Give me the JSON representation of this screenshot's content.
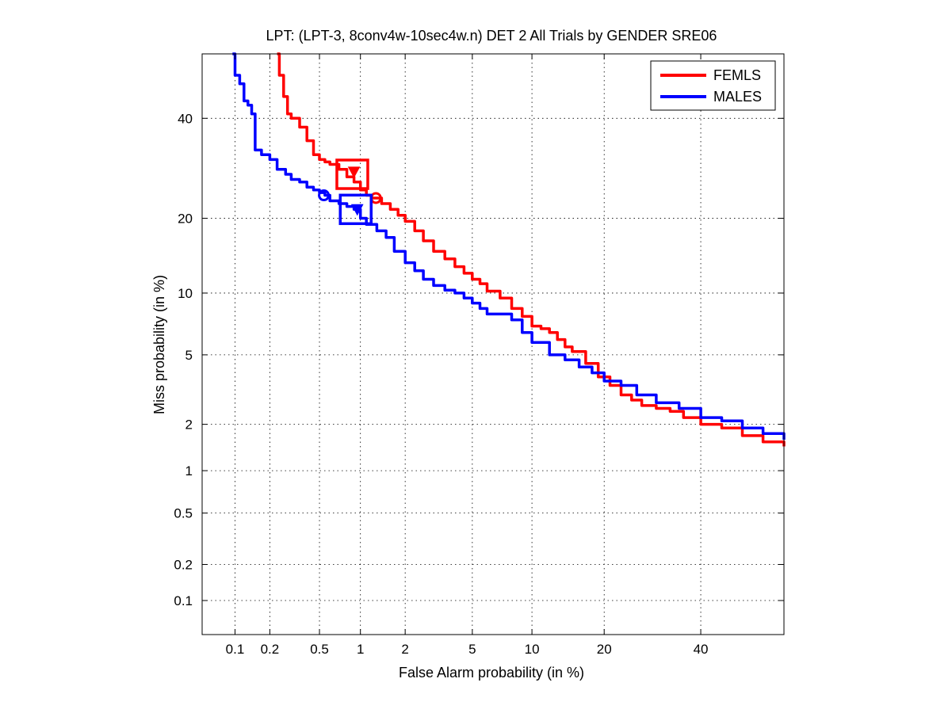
{
  "chart_data": {
    "type": "line",
    "title": "LPT: (LPT-3, 8conv4w-10sec4w.n) DET 2 All Trials by GENDER SRE06",
    "xlabel": "False Alarm probability (in %)",
    "ylabel": "Miss probability (in %)",
    "scale": "probit (normal deviate) on both axes",
    "xlim": [
      0.05,
      60
    ],
    "ylim": [
      0.05,
      55
    ],
    "grid": true,
    "x_ticks": [
      0.1,
      0.2,
      0.5,
      1,
      2,
      5,
      10,
      20,
      40
    ],
    "x_tick_labels": [
      "0.1",
      "0.2",
      "0.5",
      "1",
      "2",
      "5",
      "10",
      "20",
      "40"
    ],
    "y_ticks": [
      0.1,
      0.2,
      0.5,
      1,
      2,
      5,
      10,
      20,
      40
    ],
    "y_tick_labels": [
      "0.1",
      "0.2",
      "0.5",
      "1",
      "2",
      "5",
      "10",
      "20",
      "40"
    ],
    "legend": {
      "position": "top-right",
      "entries": [
        "FEMLS",
        "MALES"
      ]
    },
    "series": [
      {
        "name": "FEMLS",
        "color": "#ff0000",
        "x": [
          0.23,
          0.24,
          0.26,
          0.28,
          0.3,
          0.35,
          0.4,
          0.45,
          0.5,
          0.55,
          0.6,
          0.7,
          0.8,
          0.9,
          1.0,
          1.1,
          1.2,
          1.4,
          1.6,
          1.8,
          2.0,
          2.3,
          2.6,
          3.0,
          3.5,
          4.0,
          4.5,
          5.0,
          5.5,
          6.0,
          7.0,
          8.0,
          9.0,
          10.0,
          11.0,
          12.0,
          13.0,
          14.0,
          15.0,
          17.0,
          19.0,
          21.0,
          23.0,
          25.0,
          27.0,
          30.0,
          33.0,
          36.0,
          40.0,
          45.0,
          50.0,
          55.0,
          60.0
        ],
        "y": [
          55.0,
          50.0,
          45.0,
          41.0,
          40.0,
          38.0,
          35.0,
          32.0,
          31.0,
          30.5,
          30.0,
          29.0,
          27.5,
          26.5,
          25.0,
          24.0,
          23.5,
          22.5,
          21.5,
          20.5,
          19.5,
          18.0,
          16.5,
          15.0,
          14.0,
          13.0,
          12.2,
          11.5,
          11.0,
          10.2,
          9.5,
          8.5,
          7.8,
          7.0,
          6.8,
          6.5,
          6.0,
          5.5,
          5.2,
          4.5,
          3.8,
          3.4,
          3.0,
          2.8,
          2.6,
          2.5,
          2.4,
          2.2,
          2.0,
          1.9,
          1.7,
          1.55,
          1.45
        ]
      },
      {
        "name": "MALES",
        "color": "#0000ff",
        "x": [
          0.095,
          0.1,
          0.11,
          0.12,
          0.13,
          0.14,
          0.15,
          0.17,
          0.2,
          0.23,
          0.27,
          0.3,
          0.35,
          0.4,
          0.45,
          0.5,
          0.55,
          0.6,
          0.7,
          0.8,
          0.9,
          1.0,
          1.1,
          1.3,
          1.5,
          1.7,
          2.0,
          2.3,
          2.6,
          3.0,
          3.5,
          4.0,
          4.5,
          5.0,
          5.5,
          6.0,
          7.0,
          8.0,
          9.0,
          10.0,
          12.0,
          14.0,
          16.0,
          18.0,
          20.0,
          23.0,
          26.0,
          30.0,
          35.0,
          40.0,
          45.0,
          50.0,
          55.0,
          60.0
        ],
        "y": [
          55.0,
          50.0,
          48.0,
          44.0,
          43.0,
          41.0,
          33.0,
          32.0,
          31.0,
          29.0,
          28.0,
          27.0,
          26.5,
          25.5,
          25.0,
          24.5,
          24.0,
          23.0,
          22.5,
          22.0,
          21.5,
          20.0,
          19.0,
          18.0,
          17.0,
          15.0,
          13.5,
          12.5,
          11.5,
          10.8,
          10.3,
          10.0,
          9.5,
          9.0,
          8.5,
          8.0,
          8.0,
          7.5,
          6.5,
          5.8,
          5.0,
          4.7,
          4.3,
          4.0,
          3.6,
          3.4,
          3.0,
          2.7,
          2.5,
          2.2,
          2.1,
          1.9,
          1.75,
          1.6
        ]
      }
    ],
    "markers": [
      {
        "series": "FEMLS",
        "kind": "square",
        "x": 0.87,
        "y": 28.0
      },
      {
        "series": "FEMLS",
        "kind": "triangle",
        "x": 0.9,
        "y": 28.5
      },
      {
        "series": "FEMLS",
        "kind": "circle",
        "x": 1.28,
        "y": 23.5
      },
      {
        "series": "MALES",
        "kind": "square",
        "x": 0.92,
        "y": 21.5
      },
      {
        "series": "MALES",
        "kind": "triangle",
        "x": 0.95,
        "y": 21.5
      },
      {
        "series": "MALES",
        "kind": "circle",
        "x": 0.54,
        "y": 24.0
      }
    ]
  }
}
